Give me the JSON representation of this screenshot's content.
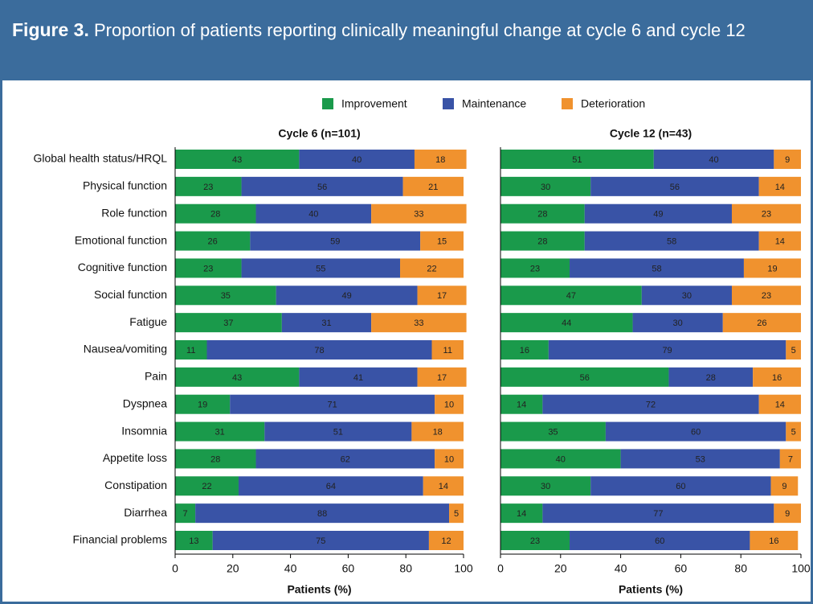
{
  "chart_data": {
    "type": "bar",
    "orientation": "horizontal",
    "stacked": true,
    "title": "Figure 3.",
    "subtitle": "Proportion of patients reporting clinically meaningful change at cycle 6 and cycle 12",
    "categories": [
      "Global health status/HRQL",
      "Physical function",
      "Role function",
      "Emotional function",
      "Cognitive function",
      "Social function",
      "Fatigue",
      "Nausea/vomiting",
      "Pain",
      "Dyspnea",
      "Insomnia",
      "Appetite loss",
      "Constipation",
      "Diarrhea",
      "Financial problems"
    ],
    "series": [
      {
        "name": "Improvement",
        "color": "#1a9a4b"
      },
      {
        "name": "Maintenance",
        "color": "#3953a6"
      },
      {
        "name": "Deterioration",
        "color": "#f0922e"
      }
    ],
    "panels": [
      {
        "title": "Cycle 6 (n=101)",
        "values": [
          [
            43,
            23,
            28,
            26,
            23,
            35,
            37,
            11,
            43,
            19,
            31,
            28,
            22,
            7,
            13
          ],
          [
            40,
            56,
            40,
            59,
            55,
            49,
            31,
            78,
            41,
            71,
            51,
            62,
            64,
            88,
            75
          ],
          [
            18,
            21,
            33,
            15,
            22,
            17,
            33,
            11,
            17,
            10,
            18,
            10,
            14,
            5,
            12
          ]
        ]
      },
      {
        "title": "Cycle 12 (n=43)",
        "values": [
          [
            51,
            30,
            28,
            28,
            23,
            47,
            44,
            16,
            56,
            14,
            35,
            40,
            30,
            14,
            23
          ],
          [
            40,
            56,
            49,
            58,
            58,
            30,
            30,
            79,
            28,
            72,
            60,
            53,
            60,
            77,
            60
          ],
          [
            9,
            14,
            23,
            14,
            19,
            23,
            26,
            5,
            16,
            14,
            5,
            7,
            9,
            9,
            16
          ]
        ]
      }
    ],
    "xlabel": "Patients (%)",
    "xlim": [
      0,
      100
    ],
    "xticks": [
      0,
      20,
      40,
      60,
      80,
      100
    ]
  }
}
